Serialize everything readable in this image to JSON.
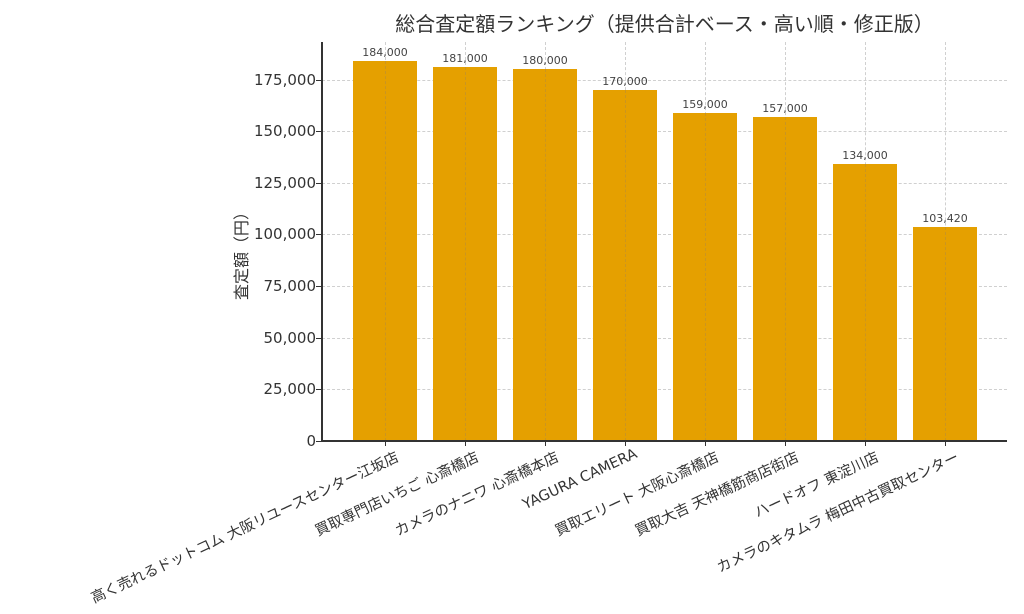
{
  "chart_data": {
    "type": "bar",
    "title": "総合査定額ランキング（提供合計ベース・高い順・修正版）",
    "xlabel": "",
    "ylabel": "査定額（円）",
    "categories": [
      "高く売れるドットコム 大阪リユースセンター江坂店",
      "買取専門店いちご 心斎橋店",
      "カメラのナニワ 心斎橋本店",
      "YAGURA CAMERA",
      "買取エリート 大阪心斎橋店",
      "買取大吉 天神橋筋商店街店",
      "ハードオフ 東淀川店",
      "カメラのキタムラ 梅田中古買取センター"
    ],
    "values": [
      184000,
      181000,
      180000,
      170000,
      159000,
      157000,
      134000,
      103420
    ],
    "value_labels": [
      "184,000",
      "181,000",
      "180,000",
      "170,000",
      "159,000",
      "157,000",
      "134,000",
      "103,420"
    ],
    "ylim": [
      0,
      193200
    ],
    "yticks": [
      0,
      25000,
      50000,
      75000,
      100000,
      125000,
      150000,
      175000
    ],
    "ytick_labels": [
      "0",
      "25,000",
      "50,000",
      "75,000",
      "100,000",
      "125,000",
      "150,000",
      "175,000"
    ],
    "grid": true,
    "bar_color": "#e5a000",
    "legend": null
  }
}
